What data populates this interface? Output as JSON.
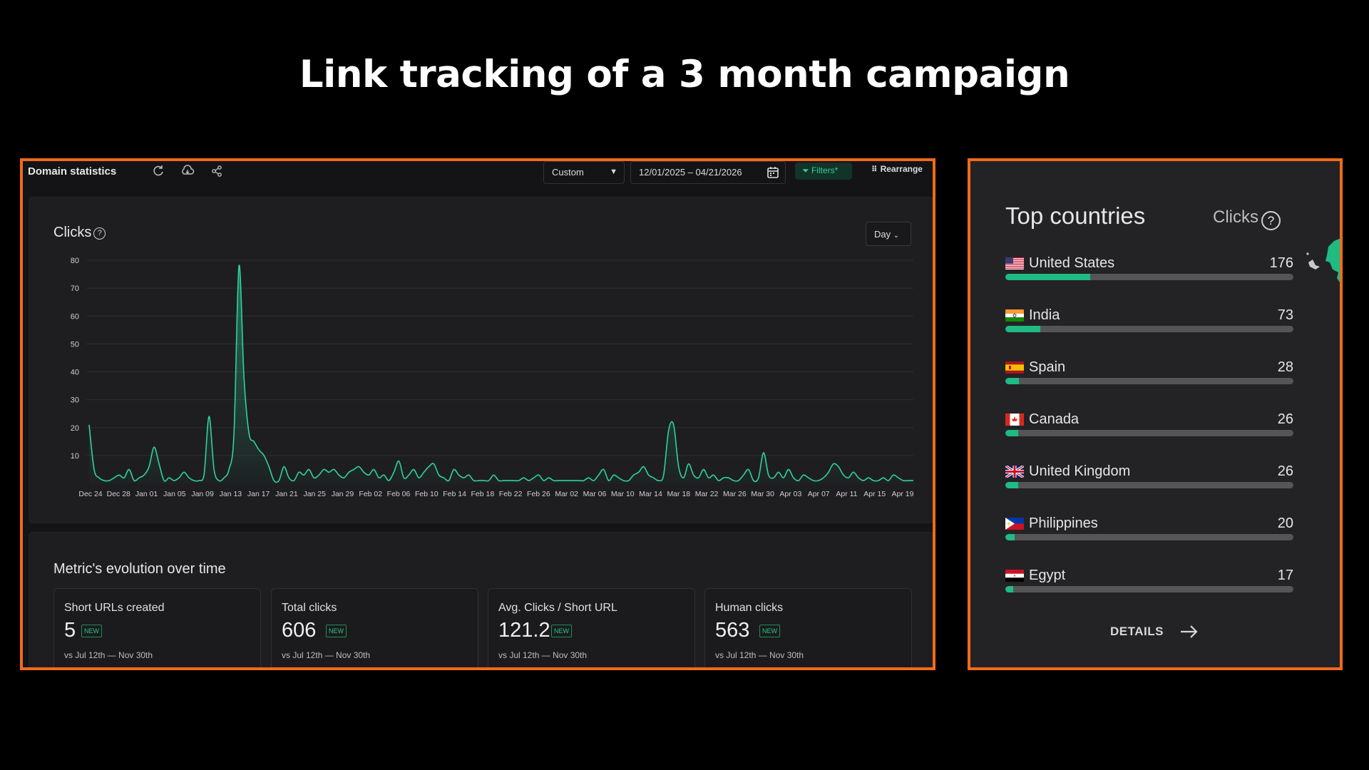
{
  "headline": "Link tracking of a 3 month campaign",
  "toolbar": {
    "title": "Domain statistics",
    "range_select": "Custom",
    "date_range": "12/01/2025 – 04/21/2026",
    "filters_label": "Filters*",
    "rearrange_label": "Rearrange"
  },
  "chart": {
    "title": "Clicks",
    "help": "?",
    "interval_select": "Day"
  },
  "chart_data": {
    "type": "area",
    "title": "Clicks",
    "ylim": [
      0,
      80
    ],
    "yticks": [
      10,
      20,
      30,
      40,
      50,
      60,
      70,
      80
    ],
    "xticks": [
      "Dec 24",
      "Dec 28",
      "Jan 01",
      "Jan 05",
      "Jan 09",
      "Jan 13",
      "Jan 17",
      "Jan 21",
      "Jan 25",
      "Jan 29",
      "Feb 02",
      "Feb 06",
      "Feb 10",
      "Feb 14",
      "Feb 18",
      "Feb 22",
      "Feb 26",
      "Mar 02",
      "Mar 06",
      "Mar 10",
      "Mar 14",
      "Mar 18",
      "Mar 22",
      "Mar 26",
      "Mar 30",
      "Apr 03",
      "Apr 07",
      "Apr 11",
      "Apr 15",
      "Apr 19"
    ],
    "x_start": "Dec 24",
    "x_end": "Apr 21",
    "series": [
      {
        "values": [
          21,
          5,
          2,
          1,
          1,
          2,
          3,
          2,
          5,
          1,
          2,
          3,
          6,
          13,
          7,
          1,
          2,
          1,
          2,
          4,
          2,
          1,
          1,
          3,
          24,
          5,
          1,
          2,
          5,
          18,
          78,
          38,
          18,
          15,
          12,
          10,
          6,
          1,
          1,
          6,
          2,
          1,
          4,
          3,
          5,
          2,
          3,
          5,
          4,
          5,
          3,
          2,
          4,
          5,
          6,
          4,
          3,
          5,
          2,
          3,
          1,
          4,
          8,
          2,
          3,
          5,
          2,
          4,
          6,
          7,
          3,
          2,
          1,
          5,
          3,
          2,
          3,
          1,
          1,
          1,
          1,
          3,
          1,
          1,
          1,
          1,
          1,
          2,
          1,
          2,
          3,
          1,
          2,
          1,
          1,
          1,
          1,
          1,
          1,
          1,
          2,
          1,
          3,
          5,
          1,
          3,
          2,
          1,
          1,
          3,
          4,
          6,
          3,
          2,
          1,
          3,
          19,
          21,
          6,
          2,
          7,
          3,
          2,
          5,
          2,
          3,
          1,
          2,
          2,
          1,
          1,
          3,
          5,
          1,
          2,
          11,
          3,
          2,
          4,
          2,
          5,
          2,
          1,
          3,
          2,
          1,
          1,
          2,
          4,
          7,
          6,
          3,
          2,
          4,
          2,
          1,
          2,
          1,
          1,
          2,
          1,
          3,
          2,
          1,
          1,
          1
        ]
      }
    ]
  },
  "metrics": {
    "title": "Metric's evolution over time",
    "badge": "NEW",
    "items": [
      {
        "label": "Short URLs created",
        "value": "5",
        "vs": "vs  Jul 12th — Nov 30th"
      },
      {
        "label": "Total clicks",
        "value": "606",
        "vs": "vs  Jul 12th — Nov 30th"
      },
      {
        "label": "Avg. Clicks / Short URL",
        "value": "121.2",
        "vs": "vs  Jul 12th — Nov 30th"
      },
      {
        "label": "Human clicks",
        "value": "563",
        "vs": "vs  Jul 12th — Nov 30th"
      }
    ]
  },
  "top_countries": {
    "title": "Top countries",
    "metric_label": "Clicks",
    "help": "?",
    "bar_color": "#1fbb82",
    "countries": [
      {
        "name": "United States",
        "value": 176,
        "flag": "us-flag"
      },
      {
        "name": "India",
        "value": 73,
        "flag": "india-flag"
      },
      {
        "name": "Spain",
        "value": 28,
        "flag": "spain-flag"
      },
      {
        "name": "Canada",
        "value": 26,
        "flag": "canada-flag"
      },
      {
        "name": "United Kingdom",
        "value": 26,
        "flag": "uk-flag"
      },
      {
        "name": "Philippines",
        "value": 20,
        "flag": "philippines-flag"
      },
      {
        "name": "Egypt",
        "value": 17,
        "flag": "egypt-flag"
      }
    ],
    "details_label": "DETAILS"
  },
  "colors": {
    "accent_border": "#f26a1b",
    "series_line": "#2fd39a",
    "panel_bg": "#141416"
  }
}
